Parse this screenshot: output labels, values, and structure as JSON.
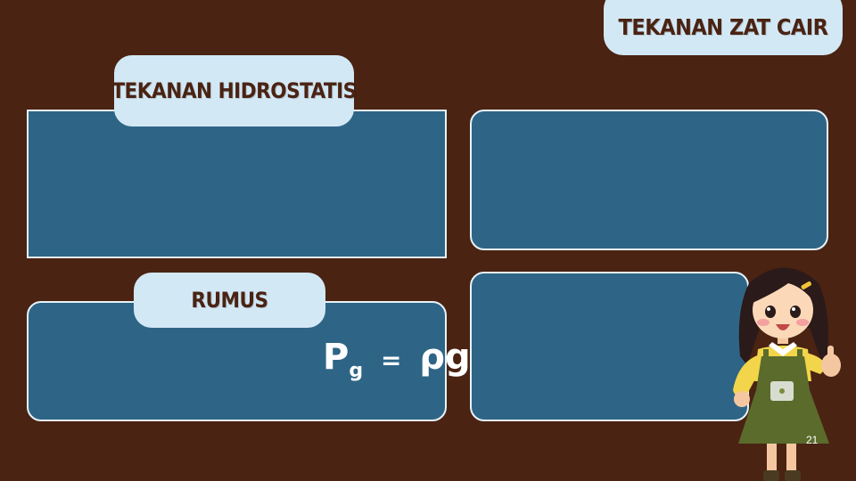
{
  "slide": {
    "title_tag": "TEKANAN ZAT CAIR",
    "section_label": "TEKANAN HIDROSTATIS",
    "formula_label": "RUMUS",
    "formula": {
      "symbol": "P",
      "subscript": "g",
      "equals": "=",
      "rhs": "ρgh"
    },
    "page_number": "21"
  },
  "colors": {
    "background": "#4a2313",
    "panel": "#2e6586",
    "label": "#d3e8f5",
    "text_dark": "#4a2313"
  },
  "illustration": "girl-thumbs-up-illustration"
}
